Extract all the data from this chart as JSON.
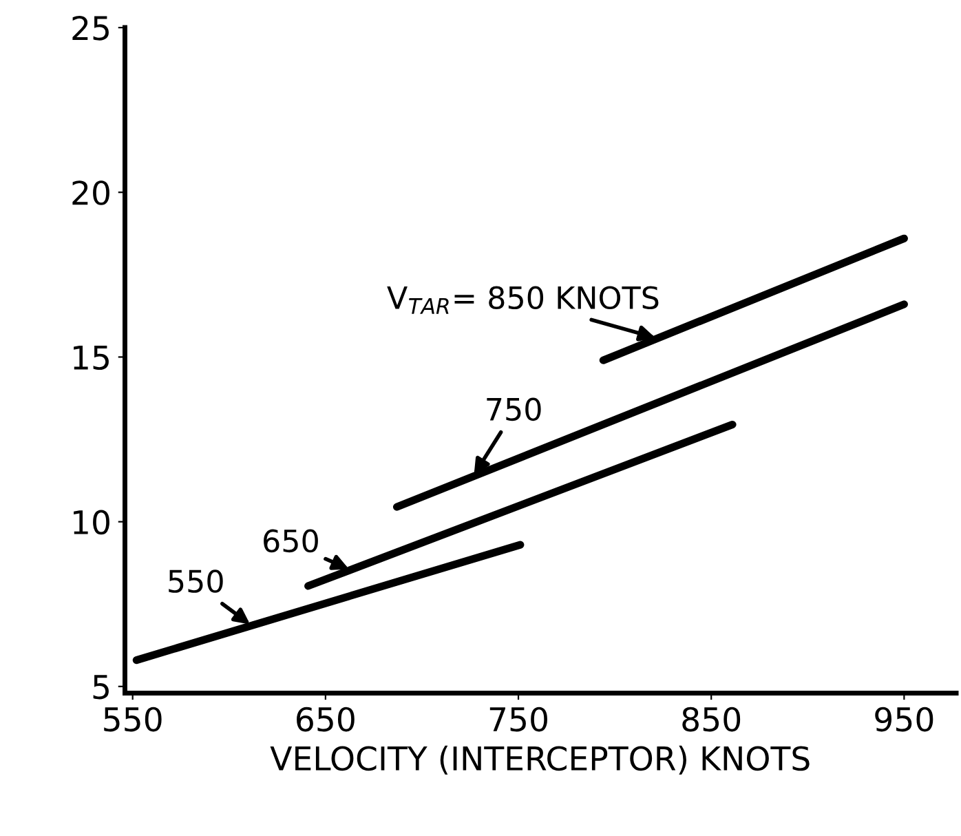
{
  "chart_data": {
    "type": "line",
    "xlabel": "VELOCITY (INTERCEPTOR) KNOTS",
    "series": [
      {
        "name": "550",
        "color": "#000000",
        "x": [
          552,
          751
        ],
        "values": [
          5.8,
          9.3
        ]
      },
      {
        "name": "650",
        "color": "#000000",
        "x": [
          641,
          861
        ],
        "values": [
          8.05,
          12.95
        ]
      },
      {
        "name": "750",
        "color": "#000000",
        "x": [
          687,
          950
        ],
        "values": [
          10.45,
          16.6
        ]
      },
      {
        "name": "V$_{TAR}$= 850 KNOTS",
        "color": "#000000",
        "x": [
          794,
          950
        ],
        "values": [
          14.9,
          18.6
        ]
      }
    ],
    "xlim": [
      546,
      977
    ],
    "ylim": [
      4.8,
      25
    ],
    "xticks": [
      550,
      650,
      750,
      850,
      950
    ],
    "yticks": [
      5,
      10,
      15,
      20,
      25
    ],
    "grid": false,
    "legend": false,
    "marker": "none",
    "line_style": "solid"
  }
}
